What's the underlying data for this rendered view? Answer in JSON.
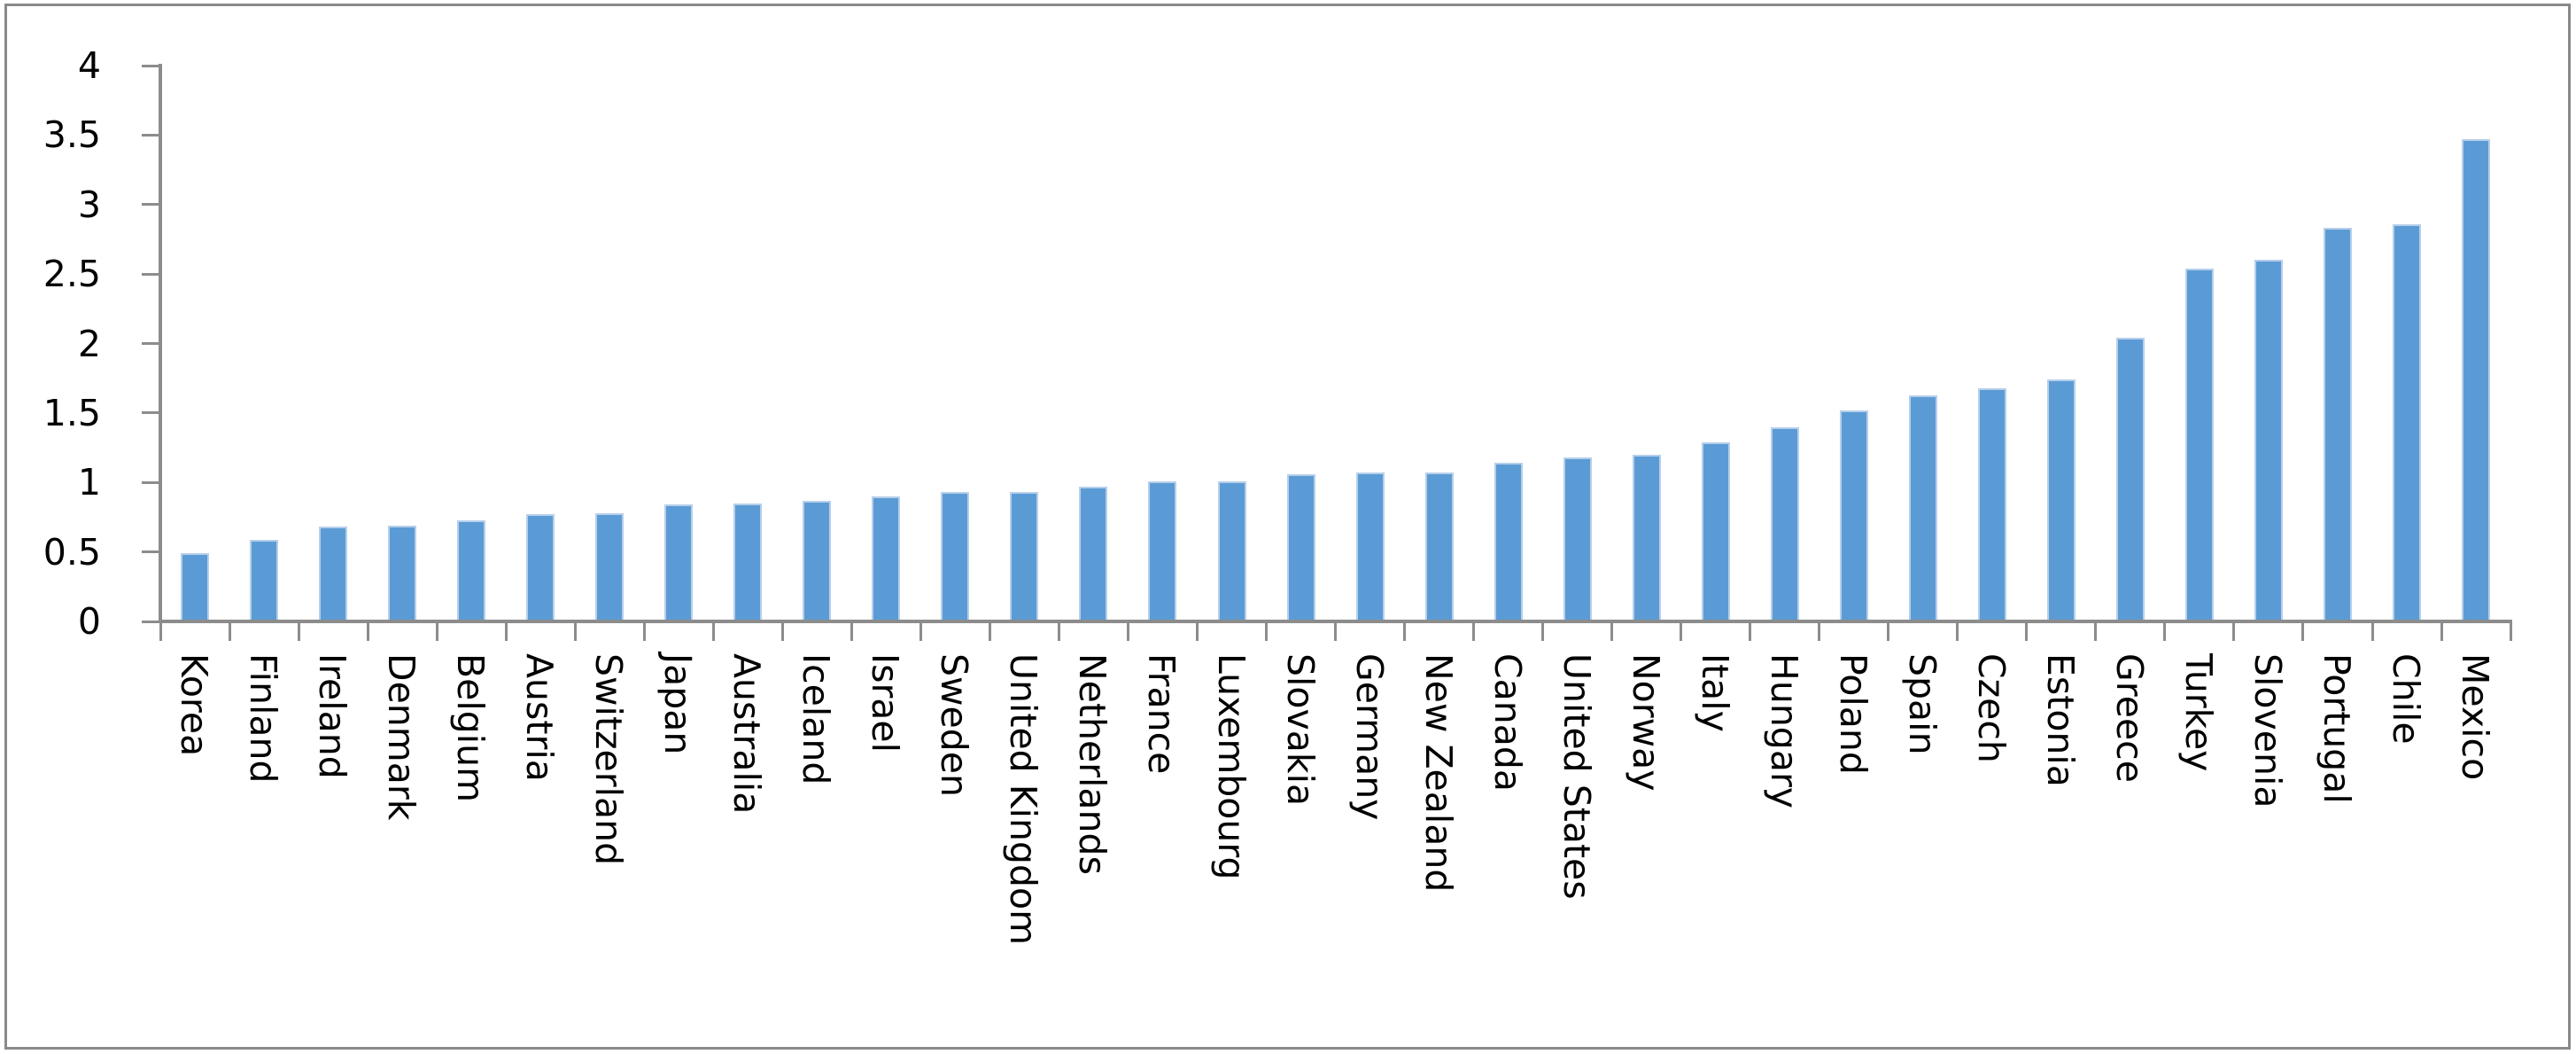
{
  "page": {
    "background_color": "#ffffff",
    "frame_border_color": "#8a8a8a"
  },
  "chart_data": {
    "type": "bar",
    "title": "",
    "xlabel": "",
    "ylabel": "",
    "grid": false,
    "legend": "none",
    "bar_color": "#5b9bd5",
    "bar_edge_color": "#b6cfea",
    "axis_color": "#8c8c8c",
    "label_color": "#000000",
    "ylim": [
      0,
      4
    ],
    "ytick_step": 0.5,
    "yticks": [
      0,
      0.5,
      1,
      1.5,
      2,
      2.5,
      3,
      3.5,
      4
    ],
    "ytick_labels": [
      "0",
      "0.5",
      "1",
      "1.5",
      "2",
      "2.5",
      "3",
      "3.5",
      "4"
    ],
    "x_label_rotation_deg": 90,
    "categories": [
      "Korea",
      "Finland",
      "Ireland",
      "Denmark",
      "Belgium",
      "Austria",
      "Switzerland",
      "Japan",
      "Australia",
      "Iceland",
      "Israel",
      "Sweden",
      "United Kingdom",
      "Netherlands",
      "France",
      "Luxembourg",
      "Slovakia",
      "Germany",
      "New Zealand",
      "Canada",
      "United States",
      "Norway",
      "Italy",
      "Hungary",
      "Poland",
      "Spain",
      "Czech",
      "Estonia",
      "Greece",
      "Turkey",
      "Slovenia",
      "Portugal",
      "Chile",
      "Mexico"
    ],
    "values": [
      0.49,
      0.59,
      0.68,
      0.69,
      0.73,
      0.77,
      0.78,
      0.84,
      0.85,
      0.87,
      0.9,
      0.93,
      0.93,
      0.97,
      1.01,
      1.01,
      1.06,
      1.07,
      1.07,
      1.14,
      1.18,
      1.2,
      1.29,
      1.4,
      1.52,
      1.63,
      1.68,
      1.74,
      2.04,
      2.54,
      2.6,
      2.83,
      2.86,
      3.47
    ]
  }
}
